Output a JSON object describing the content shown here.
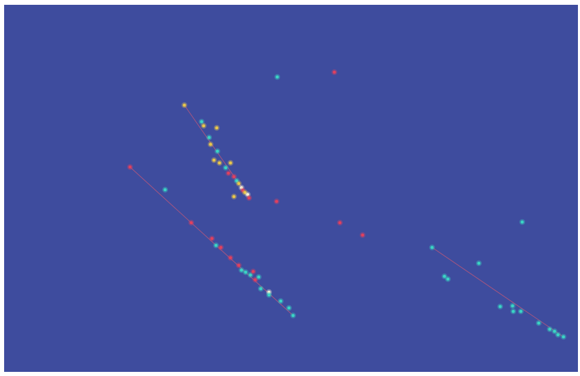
{
  "scene": {
    "background": "#3e4c9e",
    "colors": {
      "red": "#e0405e",
      "cyan": "#3ad4c4",
      "yellow": "#e8c64a",
      "white": "#f4f0d8",
      "line": "#c25878"
    },
    "clusters": [
      {
        "name": "upper-left-streak",
        "trend_line": [
          [
            262,
            146
          ],
          [
            356,
            281
          ]
        ],
        "points": [
          [
            262,
            146,
            "yellow"
          ],
          [
            287,
            170,
            "cyan"
          ],
          [
            290,
            176,
            "yellow"
          ],
          [
            309,
            179,
            "yellow"
          ],
          [
            298,
            193,
            "cyan"
          ],
          [
            300,
            203,
            "yellow"
          ],
          [
            310,
            213,
            "cyan"
          ],
          [
            305,
            226,
            "yellow"
          ],
          [
            313,
            230,
            "yellow"
          ],
          [
            322,
            237,
            "cyan"
          ],
          [
            329,
            230,
            "yellow"
          ],
          [
            334,
            250,
            "red"
          ],
          [
            338,
            256,
            "cyan"
          ],
          [
            341,
            260,
            "yellow"
          ],
          [
            345,
            266,
            "white"
          ],
          [
            347,
            270,
            "red"
          ],
          [
            350,
            273,
            "yellow"
          ],
          [
            354,
            276,
            "white"
          ],
          [
            356,
            281,
            "red"
          ],
          [
            334,
            279,
            "yellow"
          ],
          [
            326,
            245,
            "red"
          ]
        ]
      },
      {
        "name": "lower-left-streak",
        "trend_line": [
          [
            183,
            236
          ],
          [
            420,
            452
          ]
        ],
        "points": [
          [
            183,
            236,
            "red"
          ],
          [
            234,
            269,
            "cyan"
          ],
          [
            272,
            317,
            "red"
          ],
          [
            302,
            340,
            "red"
          ],
          [
            308,
            350,
            "cyan"
          ],
          [
            315,
            353,
            "red"
          ],
          [
            329,
            368,
            "red"
          ],
          [
            341,
            379,
            "red"
          ],
          [
            345,
            386,
            "cyan"
          ],
          [
            351,
            389,
            "cyan"
          ],
          [
            358,
            393,
            "cyan"
          ],
          [
            362,
            388,
            "red"
          ],
          [
            365,
            400,
            "red"
          ],
          [
            370,
            396,
            "cyan"
          ],
          [
            373,
            413,
            "cyan"
          ],
          [
            385,
            418,
            "white"
          ],
          [
            385,
            422,
            "cyan"
          ],
          [
            402,
            431,
            "cyan"
          ],
          [
            414,
            441,
            "cyan"
          ],
          [
            420,
            452,
            "cyan"
          ]
        ]
      },
      {
        "name": "right-streak",
        "trend_line": [
          [
            622,
            353
          ],
          [
            813,
            483
          ]
        ],
        "points": [
          [
            622,
            353,
            "cyan"
          ],
          [
            640,
            395,
            "cyan"
          ],
          [
            645,
            399,
            "cyan"
          ],
          [
            690,
            376,
            "cyan"
          ],
          [
            721,
            439,
            "cyan"
          ],
          [
            739,
            438,
            "cyan"
          ],
          [
            740,
            446,
            "cyan"
          ],
          [
            751,
            446,
            "cyan"
          ],
          [
            753,
            316,
            "cyan"
          ],
          [
            777,
            463,
            "cyan"
          ],
          [
            793,
            472,
            "cyan"
          ],
          [
            800,
            475,
            "cyan"
          ],
          [
            805,
            480,
            "cyan"
          ],
          [
            813,
            483,
            "cyan"
          ]
        ]
      },
      {
        "name": "isolated-points",
        "points": [
          [
            397,
            105,
            "cyan"
          ],
          [
            480,
            98,
            "red"
          ],
          [
            396,
            286,
            "red"
          ],
          [
            488,
            317,
            "red"
          ],
          [
            521,
            335,
            "red"
          ]
        ]
      }
    ]
  }
}
